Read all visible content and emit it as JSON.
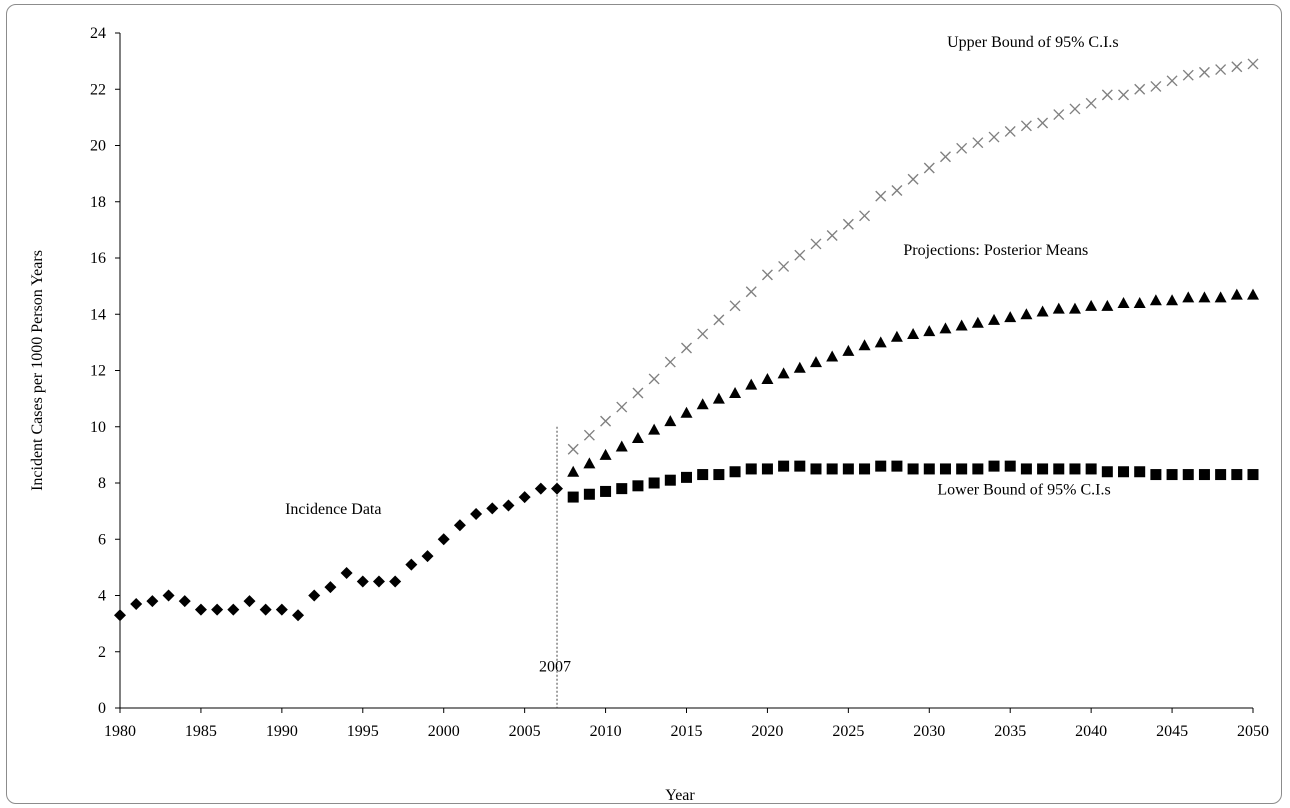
{
  "chart_data": {
    "type": "scatter",
    "title": "",
    "xlabel": "Year",
    "ylabel": "Incident Cases per 1000 Person Years",
    "xlim": [
      1980,
      2050
    ],
    "ylim": [
      0,
      24
    ],
    "x_ticks": [
      1980,
      1985,
      1990,
      1995,
      2000,
      2005,
      2010,
      2015,
      2020,
      2025,
      2030,
      2035,
      2040,
      2045,
      2050
    ],
    "y_ticks": [
      0,
      2,
      4,
      6,
      8,
      10,
      12,
      14,
      16,
      18,
      20,
      22,
      24
    ],
    "grid": false,
    "legend": "none",
    "reference_line": {
      "x": 2007,
      "label": "2007",
      "y_top": 10
    },
    "series": [
      {
        "name": "Incidence Data",
        "marker": "diamond",
        "color": "#000000",
        "x": [
          1980,
          1981,
          1982,
          1983,
          1984,
          1985,
          1986,
          1987,
          1988,
          1989,
          1990,
          1991,
          1992,
          1993,
          1994,
          1995,
          1996,
          1997,
          1998,
          1999,
          2000,
          2001,
          2002,
          2003,
          2004,
          2005,
          2006,
          2007
        ],
        "values": [
          3.3,
          3.7,
          3.8,
          4.0,
          3.8,
          3.5,
          3.5,
          3.5,
          3.8,
          3.5,
          3.5,
          3.3,
          4.0,
          4.3,
          4.8,
          4.5,
          4.5,
          4.5,
          5.1,
          5.4,
          6.0,
          6.5,
          6.9,
          7.1,
          7.2,
          7.5,
          7.8,
          7.8
        ]
      },
      {
        "name": "Upper Bound of 95% C.I.s",
        "marker": "x",
        "color": "#808080",
        "x": [
          2008,
          2009,
          2010,
          2011,
          2012,
          2013,
          2014,
          2015,
          2016,
          2017,
          2018,
          2019,
          2020,
          2021,
          2022,
          2023,
          2024,
          2025,
          2026,
          2027,
          2028,
          2029,
          2030,
          2031,
          2032,
          2033,
          2034,
          2035,
          2036,
          2037,
          2038,
          2039,
          2040,
          2041,
          2042,
          2043,
          2044,
          2045,
          2046,
          2047,
          2048,
          2049,
          2050
        ],
        "values": [
          9.2,
          9.7,
          10.2,
          10.7,
          11.2,
          11.7,
          12.3,
          12.8,
          13.3,
          13.8,
          14.3,
          14.8,
          15.4,
          15.7,
          16.1,
          16.5,
          16.8,
          17.2,
          17.5,
          18.2,
          18.4,
          18.8,
          19.2,
          19.6,
          19.9,
          20.1,
          20.3,
          20.5,
          20.7,
          20.8,
          21.1,
          21.3,
          21.5,
          21.8,
          21.8,
          22.0,
          22.1,
          22.3,
          22.5,
          22.6,
          22.7,
          22.8,
          22.9
        ]
      },
      {
        "name": "Projections: Posterior Means",
        "marker": "triangle",
        "color": "#000000",
        "x": [
          2008,
          2009,
          2010,
          2011,
          2012,
          2013,
          2014,
          2015,
          2016,
          2017,
          2018,
          2019,
          2020,
          2021,
          2022,
          2023,
          2024,
          2025,
          2026,
          2027,
          2028,
          2029,
          2030,
          2031,
          2032,
          2033,
          2034,
          2035,
          2036,
          2037,
          2038,
          2039,
          2040,
          2041,
          2042,
          2043,
          2044,
          2045,
          2046,
          2047,
          2048,
          2049,
          2050
        ],
        "values": [
          8.4,
          8.7,
          9.0,
          9.3,
          9.6,
          9.9,
          10.2,
          10.5,
          10.8,
          11.0,
          11.2,
          11.5,
          11.7,
          11.9,
          12.1,
          12.3,
          12.5,
          12.7,
          12.9,
          13.0,
          13.2,
          13.3,
          13.4,
          13.5,
          13.6,
          13.7,
          13.8,
          13.9,
          14.0,
          14.1,
          14.2,
          14.2,
          14.3,
          14.3,
          14.4,
          14.4,
          14.5,
          14.5,
          14.6,
          14.6,
          14.6,
          14.7,
          14.7
        ]
      },
      {
        "name": "Lower Bound of 95% C.I.s",
        "marker": "square",
        "color": "#000000",
        "x": [
          2008,
          2009,
          2010,
          2011,
          2012,
          2013,
          2014,
          2015,
          2016,
          2017,
          2018,
          2019,
          2020,
          2021,
          2022,
          2023,
          2024,
          2025,
          2026,
          2027,
          2028,
          2029,
          2030,
          2031,
          2032,
          2033,
          2034,
          2035,
          2036,
          2037,
          2038,
          2039,
          2040,
          2041,
          2042,
          2043,
          2044,
          2045,
          2046,
          2047,
          2048,
          2049,
          2050
        ],
        "values": [
          7.5,
          7.6,
          7.7,
          7.8,
          7.9,
          8.0,
          8.1,
          8.2,
          8.3,
          8.3,
          8.4,
          8.5,
          8.5,
          8.6,
          8.6,
          8.5,
          8.5,
          8.5,
          8.5,
          8.6,
          8.6,
          8.5,
          8.5,
          8.5,
          8.5,
          8.5,
          8.6,
          8.6,
          8.5,
          8.5,
          8.5,
          8.5,
          8.5,
          8.4,
          8.4,
          8.4,
          8.3,
          8.3,
          8.3,
          8.3,
          8.3,
          8.3,
          8.3
        ]
      }
    ],
    "annotations": [
      {
        "text": "Incidence Data",
        "x": 1990.2,
        "y": 6.9,
        "anchor": "start"
      },
      {
        "text": "Upper Bound of 95% C.I.s",
        "x": 2031.1,
        "y": 23.5,
        "anchor": "start"
      },
      {
        "text": "Projections: Posterior Means",
        "x": 2028.4,
        "y": 16.1,
        "anchor": "start"
      },
      {
        "text": "Lower Bound of 95% C.I.s",
        "x": 2030.5,
        "y": 7.6,
        "anchor": "start"
      }
    ]
  }
}
